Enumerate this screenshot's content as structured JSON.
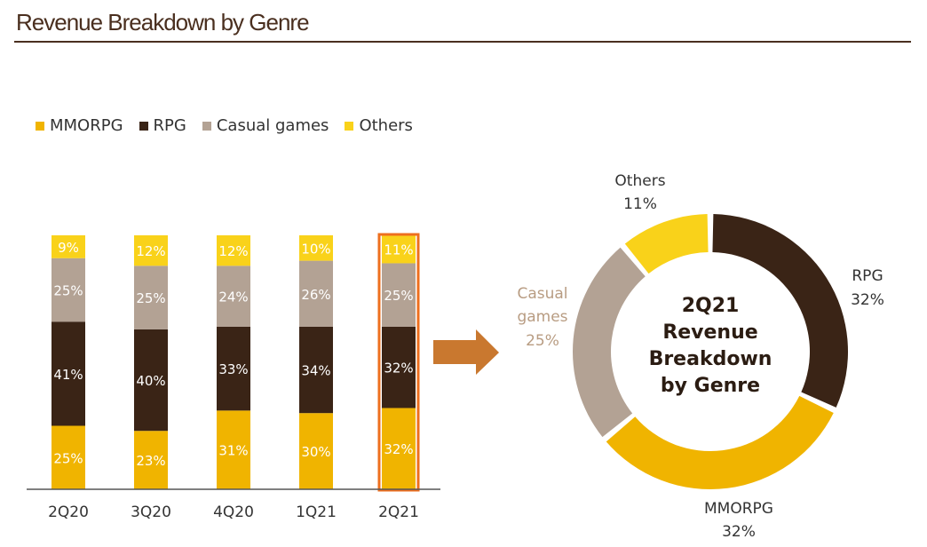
{
  "header": {
    "title": "Revenue Breakdown by Genre"
  },
  "colors": {
    "MMORPG": "#f0b400",
    "RPG": "#3a2416",
    "Casual games": "#b3a294",
    "Others": "#f9d21a",
    "highlight": "#ee6f1e",
    "arrow": "#c9782f"
  },
  "chart_data": [
    {
      "type": "bar",
      "stacked": true,
      "categories": [
        "2Q20",
        "3Q20",
        "4Q20",
        "1Q21",
        "2Q21"
      ],
      "series": [
        {
          "name": "MMORPG",
          "values": [
            25,
            23,
            31,
            30,
            32
          ]
        },
        {
          "name": "RPG",
          "values": [
            41,
            40,
            33,
            34,
            32
          ]
        },
        {
          "name": "Casual games",
          "values": [
            25,
            25,
            24,
            26,
            25
          ]
        },
        {
          "name": "Others",
          "values": [
            9,
            12,
            12,
            10,
            11
          ]
        }
      ],
      "value_labels": [
        [
          "25%",
          "23%",
          "31%",
          "30%",
          "32%"
        ],
        [
          "41%",
          "40%",
          "33%",
          "34%",
          "32%"
        ],
        [
          "25%",
          "25%",
          "24%",
          "26%",
          "25%"
        ],
        [
          "9%",
          "12%",
          "12%",
          "10%",
          "11%"
        ]
      ],
      "legend": [
        "MMORPG",
        "RPG",
        "Casual games",
        "Others"
      ],
      "legend_position": "top-left",
      "highlighted_category": "2Q21",
      "ylim": [
        0,
        100
      ]
    },
    {
      "type": "pie",
      "style": "donut",
      "center_text": [
        "2Q21",
        "Revenue",
        "Breakdown",
        "by Genre"
      ],
      "slices": [
        {
          "name": "RPG",
          "value": 32,
          "label": "RPG",
          "pct": "32%"
        },
        {
          "name": "MMORPG",
          "value": 32,
          "label": "MMORPG",
          "pct": "32%"
        },
        {
          "name": "Casual games",
          "value": 25,
          "label": "Casual",
          "label2": "games",
          "pct": "25%"
        },
        {
          "name": "Others",
          "value": 11,
          "label": "Others",
          "pct": "11%"
        }
      ]
    }
  ]
}
